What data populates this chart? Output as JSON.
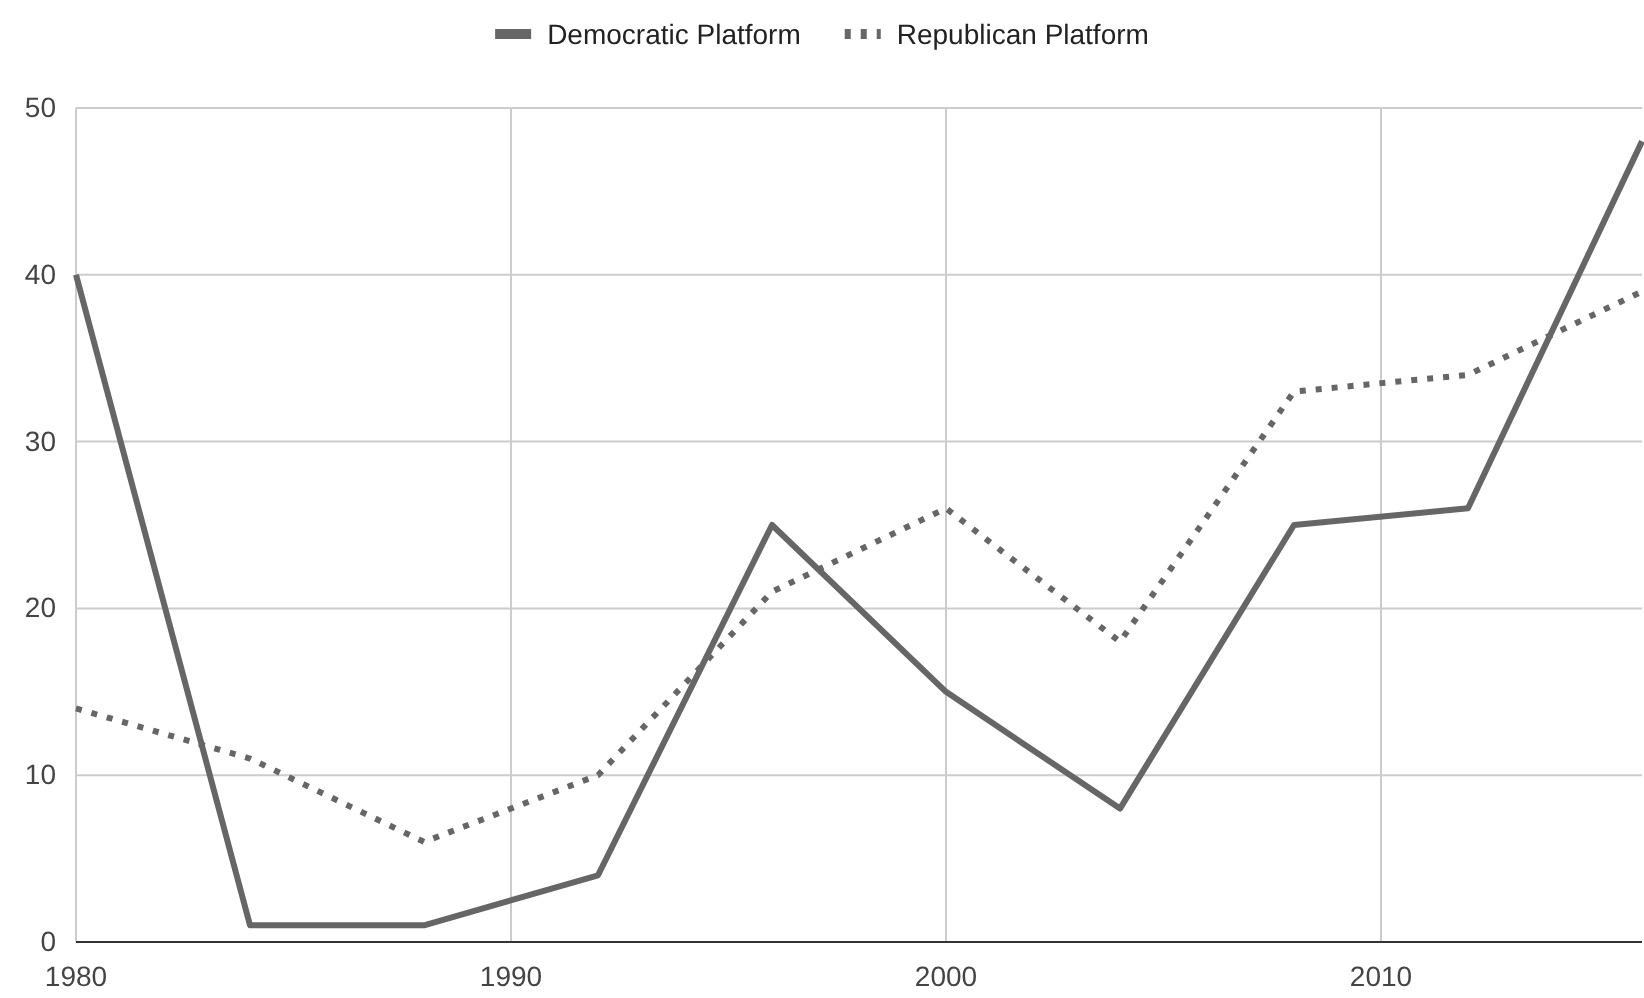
{
  "chart_data": {
    "type": "line",
    "x": [
      1980,
      1984,
      1988,
      1992,
      1996,
      2000,
      2004,
      2008,
      2012,
      2016
    ],
    "series": [
      {
        "name": "Democratic Platform",
        "color": "#666666",
        "line_style": "solid",
        "values": [
          40,
          1,
          1,
          4,
          25,
          15,
          8,
          25,
          26,
          48
        ]
      },
      {
        "name": "Republican Platform",
        "color": "#666666",
        "line_style": "dotted",
        "values": [
          14,
          11,
          6,
          10,
          21,
          26,
          18,
          33,
          34,
          39
        ]
      }
    ],
    "xlim": [
      1980,
      2016
    ],
    "xticks": [
      1980,
      1990,
      2000,
      2010
    ],
    "ylim": [
      0,
      50
    ],
    "yticks": [
      0,
      10,
      20,
      30,
      40,
      50
    ],
    "grid": true,
    "legend": "top",
    "marker": "none"
  }
}
